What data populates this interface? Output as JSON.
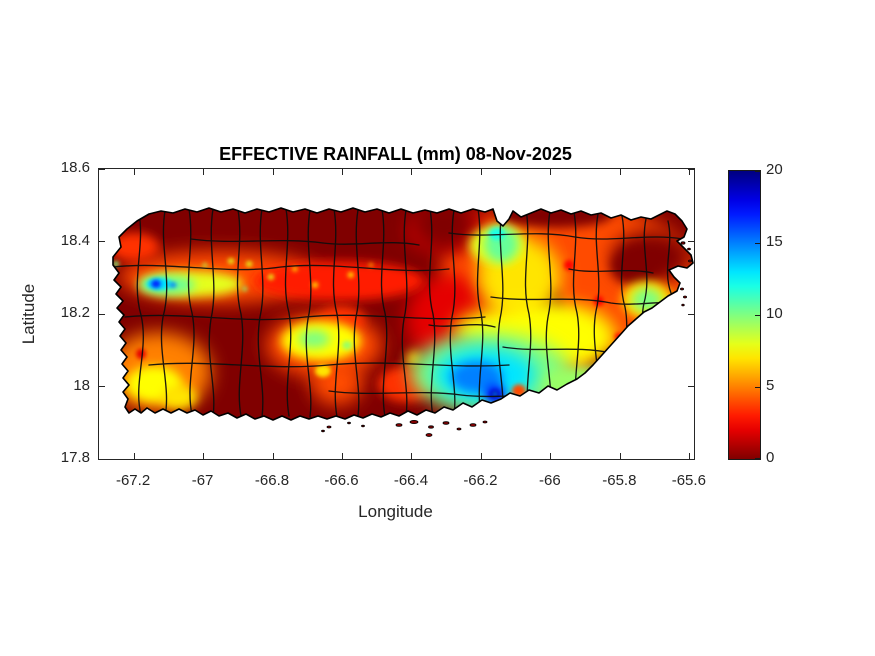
{
  "figure": {
    "background": "#ffffff",
    "frame_color": "#262626",
    "text_color": "#262626",
    "title_color": "#000000"
  },
  "chart_data": {
    "type": "heatmap",
    "title": "EFFECTIVE RAINFALL (mm) 08-Nov-2025",
    "date": "08-Nov-2025",
    "units": "mm",
    "region": "Puerto Rico municipal map",
    "xlabel": "Longitude",
    "ylabel": "Latitude",
    "xlim": [
      -67.301,
      -65.588
    ],
    "ylim": [
      17.8,
      18.6
    ],
    "xticks": [
      -67.2,
      -67,
      -66.8,
      -66.6,
      -66.4,
      -66.2,
      -66,
      -65.8,
      -65.6
    ],
    "xtick_labels": [
      "-67.2",
      "-67",
      "-66.8",
      "-66.6",
      "-66.4",
      "-66.2",
      "-66",
      "-65.8",
      "-65.6"
    ],
    "yticks": [
      17.8,
      18,
      18.2,
      18.4,
      18.6
    ],
    "ytick_labels": [
      "17.8",
      "18",
      "18.2",
      "18.4",
      "18.6"
    ],
    "grid": false,
    "colorbar": {
      "min": 0,
      "max": 20,
      "ticks": [
        0,
        5,
        10,
        15,
        20
      ],
      "colormap": "jet-reversed",
      "color_at_min": "#800000",
      "color_at_max": "#000080",
      "position": "right"
    },
    "base_value_mm": 0,
    "features": [
      {
        "name": "east-warm-region",
        "lon": -65.925,
        "lat": 18.219,
        "rx": 0.388,
        "ry": 0.29,
        "mm": 4
      },
      {
        "name": "northeast-warm-region",
        "lon": -66.155,
        "lat": 18.346,
        "rx": 0.158,
        "ry": 0.132,
        "mm": 4
      },
      {
        "name": "east-red-edge-west",
        "lon": -66.288,
        "lat": 18.186,
        "rx": 0.129,
        "ry": 0.124,
        "mm": 2
      },
      {
        "name": "north-red-edge",
        "lon": -66.294,
        "lat": 18.429,
        "rx": 0.121,
        "ry": 0.061,
        "mm": 1.5
      },
      {
        "name": "west-band",
        "lon": -66.955,
        "lat": 18.302,
        "rx": 0.288,
        "ry": 0.072,
        "mm": 4
      },
      {
        "name": "west-band-east",
        "lon": -66.61,
        "lat": 18.291,
        "rx": 0.245,
        "ry": 0.055,
        "mm": 3
      },
      {
        "name": "northwest-coast-patch",
        "lon": -67.2,
        "lat": 18.385,
        "rx": 0.072,
        "ry": 0.039,
        "mm": 3.5
      },
      {
        "name": "southwest-patch",
        "lon": -67.128,
        "lat": 18.04,
        "rx": 0.15,
        "ry": 0.11,
        "mm": 5
      },
      {
        "name": "center-patch",
        "lon": -66.653,
        "lat": 18.114,
        "rx": 0.167,
        "ry": 0.088,
        "mm": 4
      },
      {
        "name": "center-spur-ne",
        "lon": -66.604,
        "lat": 18.181,
        "rx": 0.069,
        "ry": 0.039,
        "mm": 3.5
      },
      {
        "name": "south-spur",
        "lon": -66.616,
        "lat": 18.01,
        "rx": 0.075,
        "ry": 0.061,
        "mm": 4
      },
      {
        "name": "south-coast-orange",
        "lon": -66.417,
        "lat": 18.007,
        "rx": 0.081,
        "ry": 0.05,
        "mm": 3.5
      },
      {
        "name": "far-east-orange",
        "lon": -65.655,
        "lat": 18.239,
        "rx": 0.032,
        "ry": 0.03,
        "mm": 4.5
      },
      {
        "name": "dark-north-coast-strip",
        "lon": -65.99,
        "lat": 18.473,
        "rx": 0.167,
        "ry": 0.036,
        "mm": 0
      },
      {
        "name": "dark-nw-of-region",
        "lon": -66.308,
        "lat": 18.448,
        "rx": 0.086,
        "ry": 0.069,
        "mm": 0
      },
      {
        "name": "dark-ne-head",
        "lon": -65.712,
        "lat": 18.357,
        "rx": 0.115,
        "ry": 0.072,
        "mm": 0
      },
      {
        "name": "dark-mid-east",
        "lon": -65.758,
        "lat": 18.332,
        "rx": 0.069,
        "ry": 0.05,
        "mm": 0
      },
      {
        "name": "dark-column",
        "lon": -66.0,
        "lat": 18.192,
        "rx": 0.037,
        "ry": 0.083,
        "mm": 0.5
      },
      {
        "name": "dark-patch-se",
        "lon": -65.845,
        "lat": 18.051,
        "rx": 0.055,
        "ry": 0.055,
        "mm": 0.5
      },
      {
        "name": "dark-se-coast",
        "lon": -65.712,
        "lat": 18.145,
        "rx": 0.04,
        "ry": 0.033,
        "mm": 0.5
      },
      {
        "name": "yellow-north",
        "lon": -66.092,
        "lat": 18.302,
        "rx": 0.121,
        "ry": 0.11,
        "mm": 7
      },
      {
        "name": "yellow-ne",
        "lon": -66.155,
        "lat": 18.39,
        "rx": 0.081,
        "ry": 0.055,
        "mm": 8
      },
      {
        "name": "yellow-mid-east",
        "lon": -65.971,
        "lat": 18.137,
        "rx": 0.158,
        "ry": 0.088,
        "mm": 7.5
      },
      {
        "name": "east-yellow-halo",
        "lon": -65.724,
        "lat": 18.239,
        "rx": 0.072,
        "ry": 0.052,
        "mm": 7
      },
      {
        "name": "south-yellow-rim",
        "lon": -66.092,
        "lat": 18.153,
        "rx": 0.187,
        "ry": 0.069,
        "mm": 7.5
      },
      {
        "name": "west-yellow-band",
        "lon": -67.036,
        "lat": 18.283,
        "rx": 0.15,
        "ry": 0.036,
        "mm": 8
      },
      {
        "name": "sw-yellow-core",
        "lon": -67.142,
        "lat": 18.007,
        "rx": 0.081,
        "ry": 0.05,
        "mm": 7.5
      },
      {
        "name": "sw-yellow-2",
        "lon": -67.071,
        "lat": 17.971,
        "rx": 0.052,
        "ry": 0.033,
        "mm": 7
      },
      {
        "name": "center-yellow",
        "lon": -66.662,
        "lat": 18.126,
        "rx": 0.115,
        "ry": 0.055,
        "mm": 7.5
      },
      {
        "name": "south-spur-yellow",
        "lon": -66.656,
        "lat": 18.043,
        "rx": 0.023,
        "ry": 0.017,
        "mm": 7
      },
      {
        "name": "west-speck-1",
        "lon": -66.869,
        "lat": 18.338,
        "rx": 0.009,
        "ry": 0.008,
        "mm": 8
      },
      {
        "name": "west-speck-2",
        "lon": -66.806,
        "lat": 18.302,
        "rx": 0.009,
        "ry": 0.008,
        "mm": 8
      },
      {
        "name": "west-speck-3",
        "lon": -66.737,
        "lat": 18.324,
        "rx": 0.007,
        "ry": 0.007,
        "mm": 7
      },
      {
        "name": "west-speck-4",
        "lon": -66.679,
        "lat": 18.28,
        "rx": 0.009,
        "ry": 0.008,
        "mm": 7
      },
      {
        "name": "west-speck-5",
        "lon": -66.921,
        "lat": 18.346,
        "rx": 0.009,
        "ry": 0.008,
        "mm": 8
      },
      {
        "name": "west-speck-6",
        "lon": -66.996,
        "lat": 18.335,
        "rx": 0.006,
        "ry": 0.006,
        "mm": 9
      },
      {
        "name": "west-speck-7",
        "lon": -66.576,
        "lat": 18.308,
        "rx": 0.009,
        "ry": 0.008,
        "mm": 7
      },
      {
        "name": "west-speck-8",
        "lon": -66.518,
        "lat": 18.335,
        "rx": 0.006,
        "ry": 0.006,
        "mm": 6
      },
      {
        "name": "sw-red-speck",
        "lon": -67.18,
        "lat": 18.09,
        "rx": 0.014,
        "ry": 0.014,
        "mm": 2
      },
      {
        "name": "red-speck-e1",
        "lon": -65.948,
        "lat": 18.335,
        "rx": 0.014,
        "ry": 0.014,
        "mm": 2.5
      },
      {
        "name": "red-speck-e2",
        "lon": -65.862,
        "lat": 18.236,
        "rx": 0.014,
        "ry": 0.014,
        "mm": 2.5
      },
      {
        "name": "red-speck-e4",
        "lon": -65.804,
        "lat": 18.137,
        "rx": 0.012,
        "ry": 0.011,
        "mm": 2.5
      },
      {
        "name": "yellow-west-of-max",
        "lon": -66.394,
        "lat": 18.076,
        "rx": 0.023,
        "ry": 0.022,
        "mm": 6
      },
      {
        "name": "west-green",
        "lon": -67.105,
        "lat": 18.28,
        "rx": 0.081,
        "ry": 0.025,
        "mm": 10.5
      },
      {
        "name": "west-green-speck",
        "lon": -66.881,
        "lat": 18.269,
        "rx": 0.006,
        "ry": 0.006,
        "mm": 10
      },
      {
        "name": "coast-green-speck",
        "lon": -67.252,
        "lat": 18.338,
        "rx": 0.009,
        "ry": 0.008,
        "mm": 10
      },
      {
        "name": "center-green",
        "lon": -66.682,
        "lat": 18.131,
        "rx": 0.046,
        "ry": 0.025,
        "mm": 10
      },
      {
        "name": "center-green-speck",
        "lon": -66.587,
        "lat": 18.114,
        "rx": 0.014,
        "ry": 0.012,
        "mm": 9.5
      },
      {
        "name": "north-green-spot",
        "lon": -66.143,
        "lat": 18.393,
        "rx": 0.049,
        "ry": 0.05,
        "mm": 10.5
      },
      {
        "name": "north-cyan-hint",
        "lon": -66.155,
        "lat": 18.421,
        "rx": 0.023,
        "ry": 0.017,
        "mm": 12
      },
      {
        "name": "south-green-region",
        "lon": -66.173,
        "lat": 18.037,
        "rx": 0.23,
        "ry": 0.11,
        "mm": 10
      },
      {
        "name": "green-arm-east",
        "lon": -65.897,
        "lat": 18.01,
        "rx": 0.144,
        "ry": 0.044,
        "mm": 9.5
      },
      {
        "name": "east-green-spot",
        "lon": -65.724,
        "lat": 18.239,
        "rx": 0.043,
        "ry": 0.033,
        "mm": 10
      },
      {
        "name": "south-cyan",
        "lon": -66.19,
        "lat": 18.032,
        "rx": 0.15,
        "ry": 0.077,
        "mm": 13
      },
      {
        "name": "south-light-blue",
        "lon": -66.213,
        "lat": 18.026,
        "rx": 0.075,
        "ry": 0.044,
        "mm": 15
      },
      {
        "name": "orange-speck-in-green",
        "lon": -66.092,
        "lat": 17.988,
        "rx": 0.02,
        "ry": 0.018,
        "mm": 4
      },
      {
        "name": "south-blue-max",
        "lon": -66.161,
        "lat": 17.979,
        "rx": 0.029,
        "ry": 0.025,
        "mm": 17.5
      },
      {
        "name": "south-deep-blue-max",
        "lon": -66.161,
        "lat": 17.979,
        "rx": 0.014,
        "ry": 0.012,
        "mm": 19
      },
      {
        "name": "south-max-core-dot",
        "lon": -66.161,
        "lat": 17.979,
        "rx": 0.005,
        "ry": 0.005,
        "mm": 13
      },
      {
        "name": "west-cyan",
        "lon": -67.128,
        "lat": 18.283,
        "rx": 0.037,
        "ry": 0.017,
        "mm": 13
      },
      {
        "name": "west-blue-max",
        "lon": -67.137,
        "lat": 18.283,
        "rx": 0.014,
        "ry": 0.011,
        "mm": 17
      },
      {
        "name": "west-blue-2",
        "lon": -67.088,
        "lat": 18.28,
        "rx": 0.01,
        "ry": 0.008,
        "mm": 15
      }
    ]
  }
}
